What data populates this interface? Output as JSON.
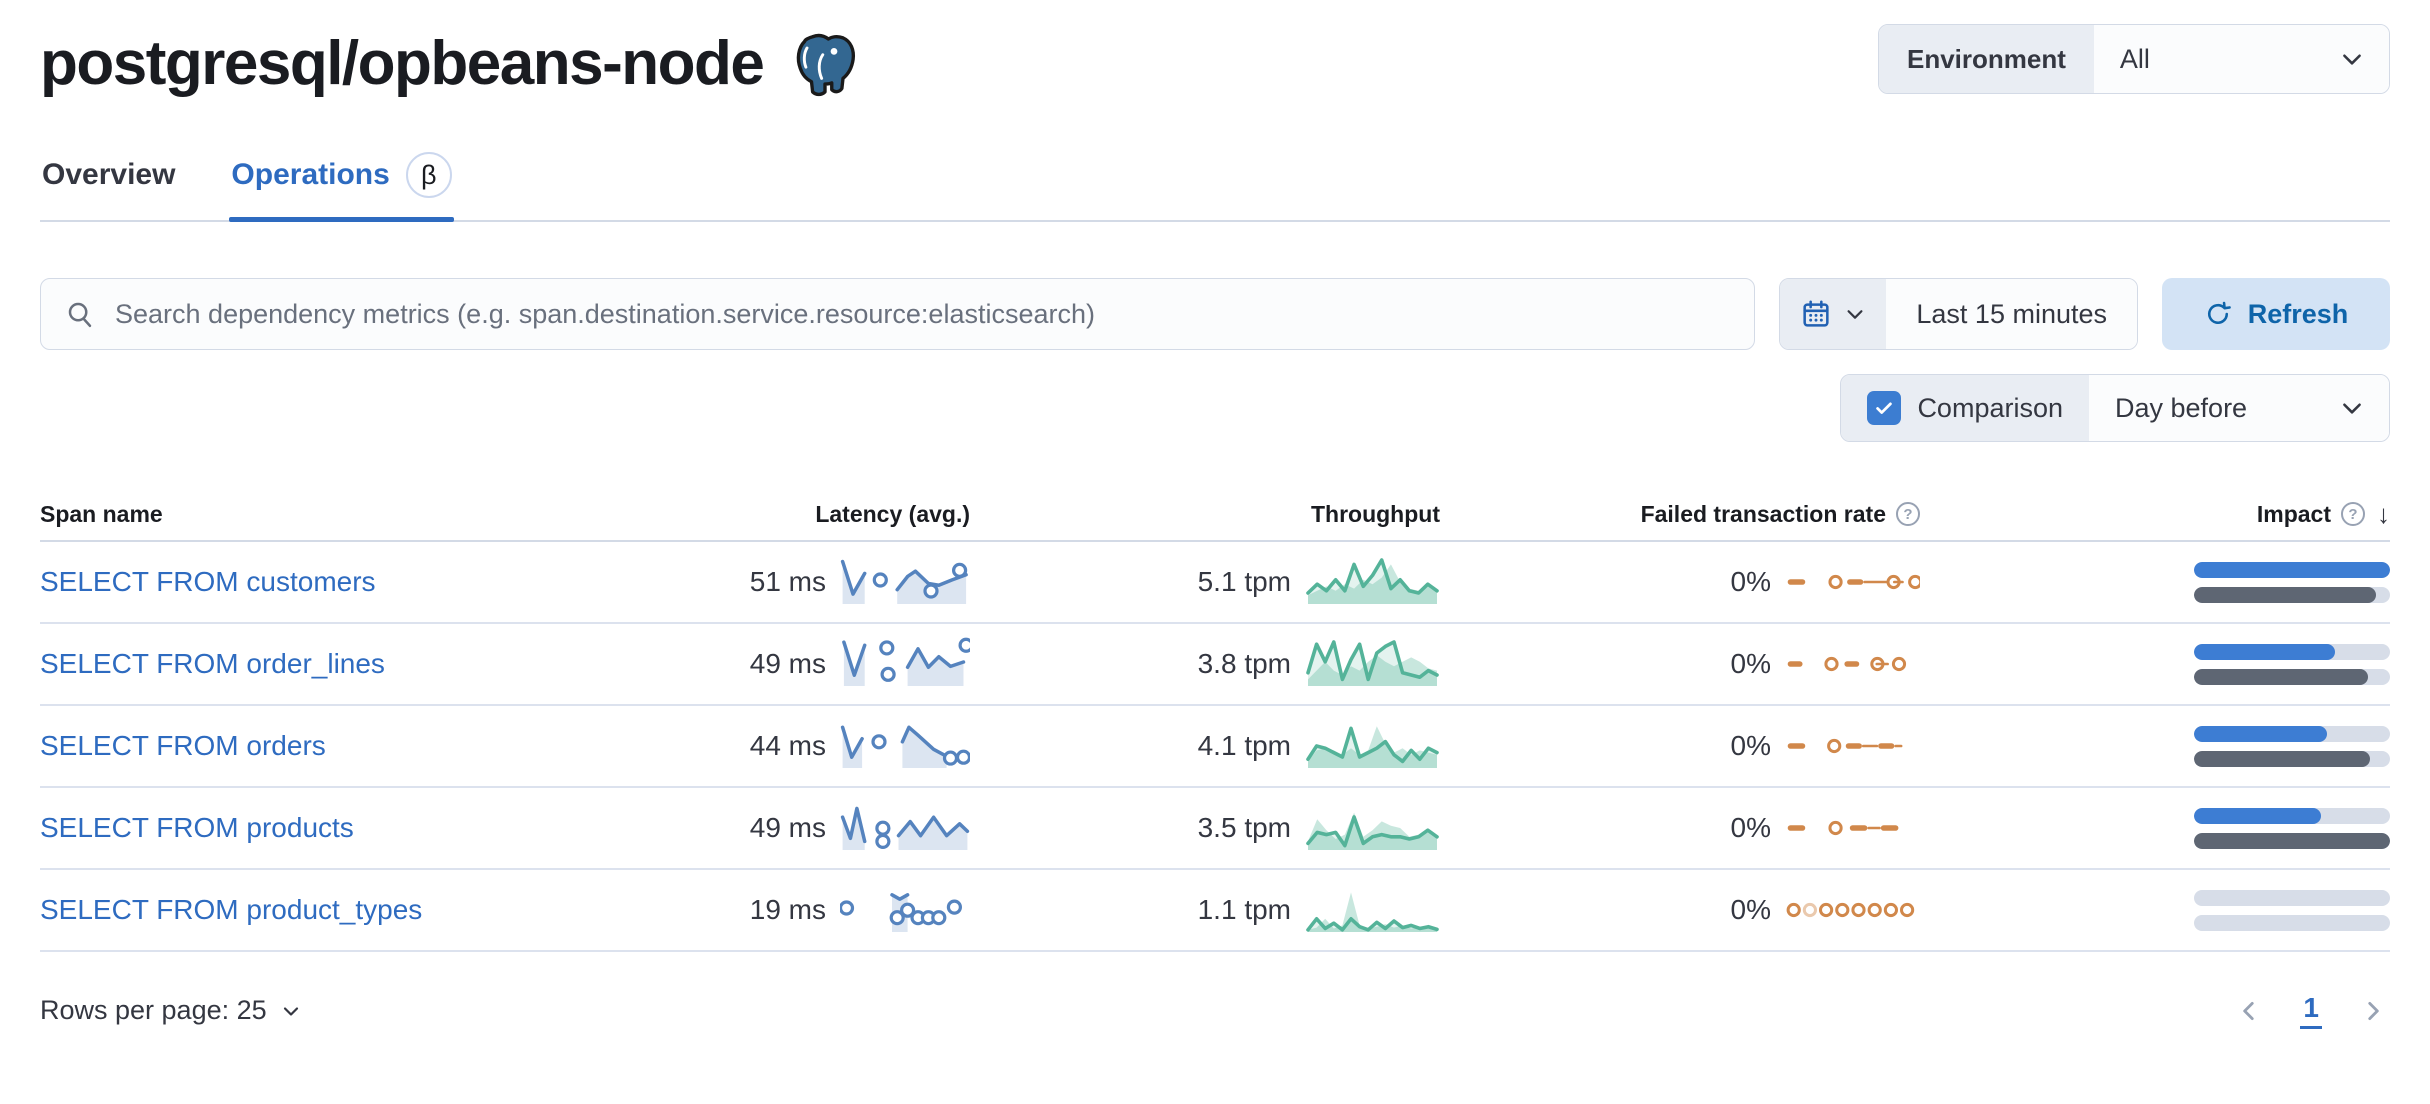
{
  "header": {
    "title": "postgresql/opbeans-node",
    "environment_label": "Environment",
    "environment_value": "All"
  },
  "tabs": [
    {
      "label": "Overview",
      "active": false
    },
    {
      "label": "Operations",
      "active": true,
      "badge": "β"
    }
  ],
  "controls": {
    "search_placeholder": "Search dependency metrics (e.g. span.destination.service.resource:elasticsearch)",
    "time_range": "Last 15 minutes",
    "refresh_label": "Refresh",
    "comparison_label": "Comparison",
    "comparison_checked": true,
    "comparison_value": "Day before"
  },
  "table": {
    "columns": [
      "Span name",
      "Latency (avg.)",
      "Throughput",
      "Failed transaction rate",
      "Impact"
    ],
    "rows": [
      {
        "span_name": "SELECT FROM customers",
        "latency": "51 ms",
        "throughput": "5.1 tpm",
        "failed_rate": "0%",
        "impact_current_pct": 100,
        "impact_previous_pct": 93,
        "latency_spark": {
          "lines": [
            [
              [
                0.02,
                0.08
              ],
              [
                0.1,
                0.82
              ],
              [
                0.19,
                0.35
              ]
            ],
            [
              [
                0.44,
                0.72
              ],
              [
                0.52,
                0.42
              ],
              [
                0.58,
                0.3
              ],
              [
                0.68,
                0.58
              ],
              [
                0.76,
                0.62
              ],
              [
                0.86,
                0.5
              ],
              [
                0.97,
                0.38
              ]
            ]
          ],
          "markers": [
            [
              0.31,
              0.5
            ],
            [
              0.7,
              0.75
            ],
            [
              0.92,
              0.28
            ]
          ]
        },
        "throughput_spark": {
          "current": [
            0.25,
            0.45,
            0.3,
            0.55,
            0.3,
            0.9,
            0.4,
            0.65,
            1.0,
            0.35,
            0.55,
            0.3,
            0.25,
            0.45,
            0.3
          ],
          "previous": [
            0.2,
            0.3,
            0.4,
            0.3,
            0.45,
            0.35,
            0.55,
            0.45,
            0.6,
            0.9,
            0.5,
            0.35,
            0.3,
            0.4,
            0.35
          ]
        },
        "failed_spark": [
          {
            "t": "dash",
            "x": 0.02,
            "w": 0.13
          },
          {
            "t": "circle",
            "x": 0.33
          },
          {
            "t": "dash",
            "x": 0.46,
            "w": 0.12
          },
          {
            "t": "line",
            "x": 0.58,
            "w": 0.18
          },
          {
            "t": "circle",
            "x": 0.76
          },
          {
            "t": "line",
            "x": 0.8,
            "w": 0.08
          },
          {
            "t": "circle",
            "x": 0.92
          }
        ]
      },
      {
        "span_name": "SELECT FROM order_lines",
        "latency": "49 ms",
        "throughput": "3.8 tpm",
        "failed_rate": "0%",
        "impact_current_pct": 72,
        "impact_previous_pct": 89,
        "latency_spark": {
          "lines": [
            [
              [
                0.03,
                0.05
              ],
              [
                0.11,
                0.8
              ],
              [
                0.19,
                0.12
              ]
            ],
            [
              [
                0.52,
                0.62
              ],
              [
                0.6,
                0.2
              ],
              [
                0.68,
                0.62
              ],
              [
                0.76,
                0.38
              ],
              [
                0.85,
                0.6
              ],
              [
                0.95,
                0.5
              ]
            ]
          ],
          "markers": [
            [
              0.36,
              0.18
            ],
            [
              0.37,
              0.78
            ],
            [
              0.97,
              0.12
            ]
          ]
        },
        "throughput_spark": {
          "current": [
            0.3,
            0.95,
            0.55,
            1.0,
            0.15,
            0.6,
            0.95,
            0.15,
            0.75,
            0.9,
            1.0,
            0.3,
            0.25,
            0.2,
            0.35,
            0.25
          ],
          "previous": [
            0.15,
            0.35,
            0.55,
            0.35,
            0.25,
            0.45,
            0.35,
            0.55,
            0.7,
            0.55,
            0.45,
            0.55,
            0.65,
            0.55,
            0.4,
            0.35
          ]
        },
        "failed_spark": [
          {
            "t": "dash",
            "x": 0.02,
            "w": 0.11
          },
          {
            "t": "circle",
            "x": 0.3
          },
          {
            "t": "dash",
            "x": 0.44,
            "w": 0.11
          },
          {
            "t": "circle",
            "x": 0.64
          },
          {
            "t": "line",
            "x": 0.67,
            "w": 0.1
          },
          {
            "t": "circle",
            "x": 0.8
          }
        ]
      },
      {
        "span_name": "SELECT FROM orders",
        "latency": "44 ms",
        "throughput": "4.1 tpm",
        "failed_rate": "0%",
        "impact_current_pct": 68,
        "impact_previous_pct": 90,
        "latency_spark": {
          "lines": [
            [
              [
                0.02,
                0.12
              ],
              [
                0.09,
                0.8
              ],
              [
                0.17,
                0.38
              ]
            ],
            [
              [
                0.48,
                0.45
              ],
              [
                0.53,
                0.12
              ],
              [
                0.6,
                0.3
              ],
              [
                0.72,
                0.62
              ],
              [
                0.82,
                0.78
              ]
            ]
          ],
          "markers": [
            [
              0.3,
              0.45
            ],
            [
              0.85,
              0.82
            ],
            [
              0.95,
              0.8
            ]
          ]
        },
        "throughput_spark": {
          "current": [
            0.2,
            0.5,
            0.45,
            0.35,
            0.25,
            0.9,
            0.25,
            0.35,
            0.45,
            0.6,
            0.3,
            0.15,
            0.4,
            0.2,
            0.45,
            0.35
          ],
          "previous": [
            0.15,
            0.4,
            0.45,
            0.4,
            0.3,
            0.45,
            0.3,
            0.4,
            0.95,
            0.55,
            0.35,
            0.45,
            0.3,
            0.4,
            0.35,
            0.3
          ]
        },
        "failed_spark": [
          {
            "t": "dash",
            "x": 0.02,
            "w": 0.13
          },
          {
            "t": "circle",
            "x": 0.32
          },
          {
            "t": "dash",
            "x": 0.45,
            "w": 0.12
          },
          {
            "t": "line",
            "x": 0.57,
            "w": 0.12
          },
          {
            "t": "dash",
            "x": 0.69,
            "w": 0.12
          },
          {
            "t": "line",
            "x": 0.81,
            "w": 0.06
          }
        ]
      },
      {
        "span_name": "SELECT FROM products",
        "latency": "49 ms",
        "throughput": "3.5 tpm",
        "failed_rate": "0%",
        "impact_current_pct": 65,
        "impact_previous_pct": 100,
        "latency_spark": {
          "lines": [
            [
              [
                0.02,
                0.3
              ],
              [
                0.08,
                0.78
              ],
              [
                0.13,
                0.1
              ],
              [
                0.19,
                0.85
              ]
            ],
            [
              [
                0.45,
                0.72
              ],
              [
                0.54,
                0.4
              ],
              [
                0.62,
                0.72
              ],
              [
                0.72,
                0.3
              ],
              [
                0.82,
                0.72
              ],
              [
                0.92,
                0.45
              ],
              [
                0.98,
                0.62
              ]
            ]
          ],
          "markers": [
            [
              0.33,
              0.55
            ],
            [
              0.33,
              0.85
            ]
          ]
        },
        "throughput_spark": {
          "current": [
            0.15,
            0.4,
            0.35,
            0.4,
            0.1,
            0.75,
            0.15,
            0.3,
            0.35,
            0.3,
            0.3,
            0.25,
            0.3,
            0.45,
            0.3
          ],
          "previous": [
            0.2,
            0.7,
            0.45,
            0.25,
            0.35,
            0.85,
            0.3,
            0.45,
            0.65,
            0.55,
            0.5,
            0.3,
            0.35,
            0.4,
            0.3
          ]
        },
        "failed_spark": [
          {
            "t": "dash",
            "x": 0.02,
            "w": 0.13
          },
          {
            "t": "circle",
            "x": 0.33
          },
          {
            "t": "dash",
            "x": 0.48,
            "w": 0.13
          },
          {
            "t": "line",
            "x": 0.61,
            "w": 0.1
          },
          {
            "t": "dash",
            "x": 0.71,
            "w": 0.13
          }
        ]
      },
      {
        "span_name": "SELECT FROM product_types",
        "latency": "19 ms",
        "throughput": "1.1 tpm",
        "failed_rate": "0%",
        "impact_current_pct": 0,
        "impact_previous_pct": 0,
        "latency_spark": {
          "lines": [
            [
              [
                0.4,
                0.2
              ],
              [
                0.46,
                0.3
              ],
              [
                0.52,
                0.2
              ]
            ]
          ],
          "markers": [
            [
              0.05,
              0.5
            ],
            [
              0.44,
              0.72
            ],
            [
              0.52,
              0.55
            ],
            [
              0.6,
              0.72
            ],
            [
              0.68,
              0.72
            ],
            [
              0.76,
              0.72
            ],
            [
              0.88,
              0.48
            ]
          ]
        },
        "throughput_spark": {
          "current": [
            0.05,
            0.3,
            0.08,
            0.2,
            0.05,
            0.3,
            0.12,
            0.05,
            0.22,
            0.08,
            0.25,
            0.1,
            0.15,
            0.08,
            0.12,
            0.06
          ],
          "previous": [
            0.05,
            0.1,
            0.3,
            0.08,
            0.15,
            0.9,
            0.15,
            0.08,
            0.12,
            0.18,
            0.1,
            0.15,
            0.08,
            0.12,
            0.08,
            0.05
          ]
        },
        "failed_spark": [
          {
            "t": "circle",
            "x": 0.02
          },
          {
            "t": "circle-faded",
            "x": 0.14
          },
          {
            "t": "circle",
            "x": 0.26
          },
          {
            "t": "circle",
            "x": 0.38
          },
          {
            "t": "circle",
            "x": 0.5
          },
          {
            "t": "circle",
            "x": 0.62
          },
          {
            "t": "circle",
            "x": 0.74
          },
          {
            "t": "circle",
            "x": 0.86
          }
        ]
      }
    ]
  },
  "pagination": {
    "rows_per_page_label": "Rows per page: 25",
    "current_page": "1"
  },
  "colors": {
    "link_blue": "#2E6BC0",
    "latency_blue": "#5583BE",
    "latency_area": "#DCE5F1",
    "throughput_green": "#54B399",
    "failed_orange": "#D1884B",
    "impact_blue": "#3D7DD3",
    "impact_gray": "#5E6673",
    "impact_track": "#D7DDE8"
  }
}
